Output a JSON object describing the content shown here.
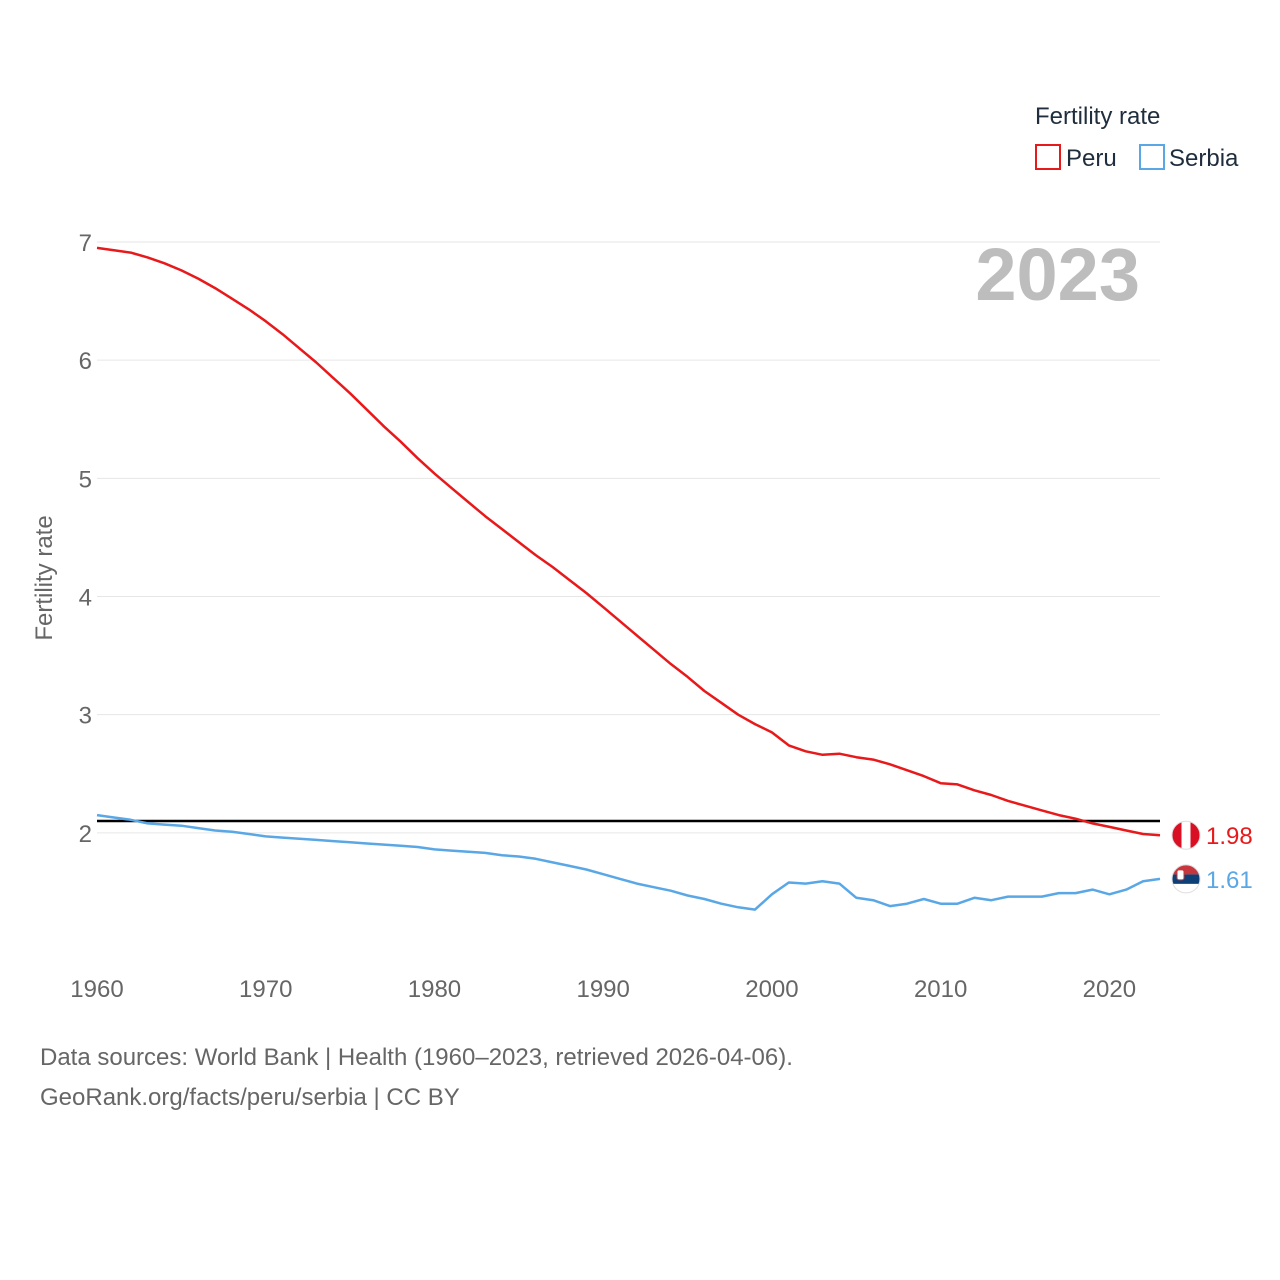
{
  "chart_data": {
    "type": "line",
    "legend_title": "Fertility rate",
    "ylabel": "Fertility rate",
    "xlabel": "",
    "year_stamp": "2023",
    "xlim": [
      1960,
      2023
    ],
    "ylim": [
      1.0,
      7.0
    ],
    "x_ticks": [
      1960,
      1970,
      1980,
      1990,
      2000,
      2010,
      2020
    ],
    "y_ticks": [
      2,
      3,
      4,
      5,
      6,
      7
    ],
    "reference_line": {
      "value": 2.1,
      "color": "#000000"
    },
    "x": [
      1960,
      1961,
      1962,
      1963,
      1964,
      1965,
      1966,
      1967,
      1968,
      1969,
      1970,
      1971,
      1972,
      1973,
      1974,
      1975,
      1976,
      1977,
      1978,
      1979,
      1980,
      1981,
      1982,
      1983,
      1984,
      1985,
      1986,
      1987,
      1988,
      1989,
      1990,
      1991,
      1992,
      1993,
      1994,
      1995,
      1996,
      1997,
      1998,
      1999,
      2000,
      2001,
      2002,
      2003,
      2004,
      2005,
      2006,
      2007,
      2008,
      2009,
      2010,
      2011,
      2012,
      2013,
      2014,
      2015,
      2016,
      2017,
      2018,
      2019,
      2020,
      2021,
      2022,
      2023
    ],
    "series": [
      {
        "name": "Peru",
        "color": "#e8191b",
        "end_label": "1.98",
        "values": [
          6.95,
          6.93,
          6.91,
          6.87,
          6.82,
          6.76,
          6.69,
          6.61,
          6.52,
          6.43,
          6.33,
          6.22,
          6.1,
          5.98,
          5.85,
          5.72,
          5.58,
          5.44,
          5.31,
          5.17,
          5.04,
          4.92,
          4.8,
          4.68,
          4.57,
          4.46,
          4.35,
          4.25,
          4.14,
          4.03,
          3.91,
          3.79,
          3.67,
          3.55,
          3.43,
          3.32,
          3.2,
          3.1,
          3.0,
          2.92,
          2.85,
          2.74,
          2.69,
          2.66,
          2.67,
          2.64,
          2.62,
          2.58,
          2.53,
          2.48,
          2.42,
          2.41,
          2.36,
          2.32,
          2.27,
          2.23,
          2.19,
          2.15,
          2.12,
          2.08,
          2.05,
          2.02,
          1.99,
          1.98
        ]
      },
      {
        "name": "Serbia",
        "color": "#5aa7e6",
        "end_label": "1.61",
        "values": [
          2.15,
          2.13,
          2.11,
          2.08,
          2.07,
          2.06,
          2.04,
          2.02,
          2.01,
          1.99,
          1.97,
          1.96,
          1.95,
          1.94,
          1.93,
          1.92,
          1.91,
          1.9,
          1.89,
          1.88,
          1.86,
          1.85,
          1.84,
          1.83,
          1.81,
          1.8,
          1.78,
          1.75,
          1.72,
          1.69,
          1.65,
          1.61,
          1.57,
          1.54,
          1.51,
          1.47,
          1.44,
          1.4,
          1.37,
          1.35,
          1.48,
          1.58,
          1.57,
          1.59,
          1.57,
          1.45,
          1.43,
          1.38,
          1.4,
          1.44,
          1.4,
          1.4,
          1.45,
          1.43,
          1.46,
          1.46,
          1.46,
          1.49,
          1.49,
          1.52,
          1.48,
          1.52,
          1.59,
          1.61
        ]
      }
    ]
  },
  "footer": {
    "source_line": "Data sources: World Bank | Health (1960–2023, retrieved 2026-04-06).",
    "credit_line": "GeoRank.org/facts/peru/serbia | CC BY"
  }
}
